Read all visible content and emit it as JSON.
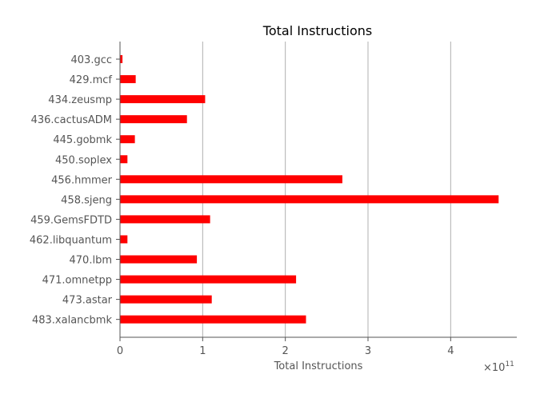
{
  "chart_data": {
    "type": "bar",
    "orientation": "horizontal",
    "title": "Total Instructions",
    "xlabel": "Total Instructions",
    "ylabel": "",
    "x_scale_label": "×10",
    "x_scale_exponent": "11",
    "xlim": [
      0,
      4.8
    ],
    "xticks": [
      0,
      1,
      2,
      3,
      4
    ],
    "grid": "x",
    "bar_color": "#ff0000",
    "grid_color": "#b0b0b0",
    "axis_color": "#555555",
    "categories": [
      "403.gcc",
      "429.mcf",
      "434.zeusmp",
      "436.cactusADM",
      "445.gobmk",
      "450.soplex",
      "456.hmmer",
      "458.sjeng",
      "459.GemsFDTD",
      "462.libquantum",
      "470.lbm",
      "471.omnetpp",
      "473.astar",
      "483.xalancbmk"
    ],
    "values": [
      0.03,
      0.19,
      1.03,
      0.81,
      0.18,
      0.09,
      2.69,
      4.58,
      1.09,
      0.09,
      0.93,
      2.13,
      1.11,
      2.25
    ]
  }
}
